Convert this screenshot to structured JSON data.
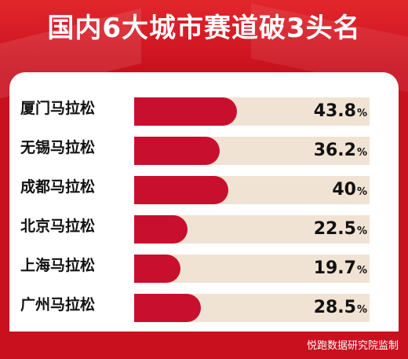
{
  "chart_data": {
    "type": "bar",
    "orientation": "horizontal",
    "title": "国内6大城市赛道破3头名",
    "categories": [
      "厦门马拉松",
      "无锡马拉松",
      "成都马拉松",
      "北京马拉松",
      "上海马拉松",
      "广州马拉松"
    ],
    "values": [
      43.8,
      36.2,
      40,
      22.5,
      19.7,
      28.5
    ],
    "value_labels": [
      "43.8",
      "36.2",
      "40",
      "22.5",
      "19.7",
      "28.5"
    ],
    "unit": "%",
    "xlim": [
      0,
      100
    ],
    "grid": false,
    "legend": "none"
  },
  "footer": {
    "source": "悦跑数据研究院监制"
  },
  "colors": {
    "bar": "#c8102e",
    "track": "#f1e3d4",
    "background": "#c8101e",
    "panel": "#ffffff",
    "title_text": "#ffffff"
  }
}
